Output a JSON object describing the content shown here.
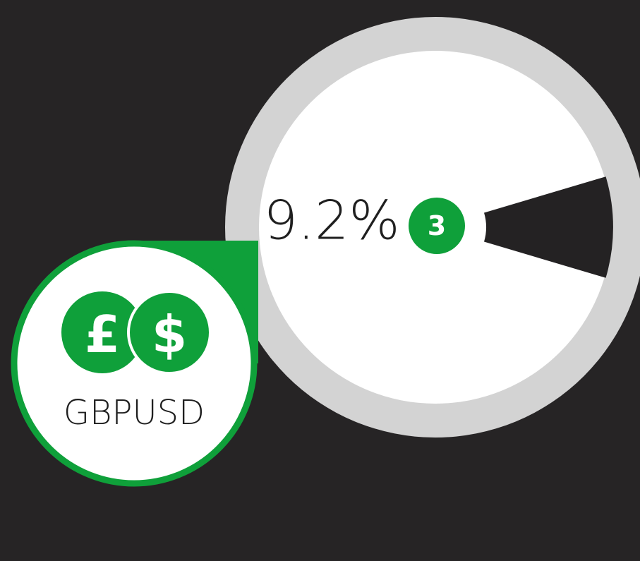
{
  "value": 9.2,
  "value_label": "9.2%",
  "rank": 3,
  "symbol": "GBPUSD",
  "icons": [
    "£",
    "$"
  ]
}
